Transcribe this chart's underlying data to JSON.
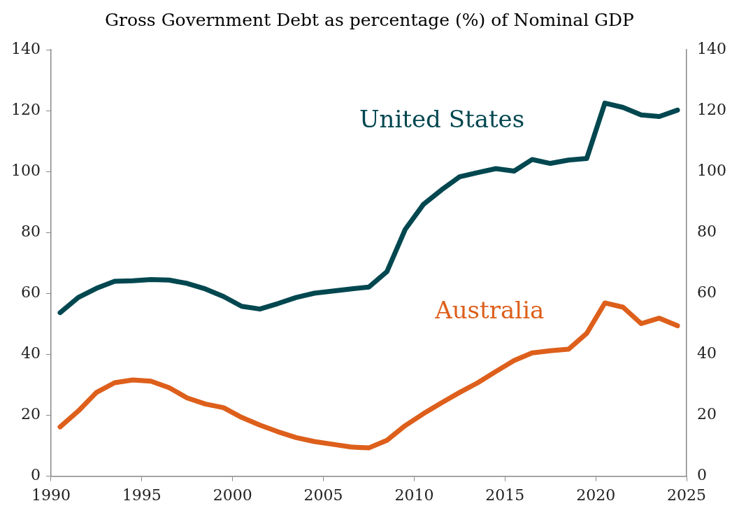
{
  "chart_data": {
    "type": "line",
    "title": "Gross Government Debt as percentage (%) of Nominal GDP",
    "x": [
      1990.5,
      1991.5,
      1992.5,
      1993.5,
      1994.5,
      1995.5,
      1996.5,
      1997.5,
      1998.5,
      1999.5,
      2000.5,
      2001.5,
      2002.5,
      2003.5,
      2004.5,
      2005.5,
      2006.5,
      2007.5,
      2008.5,
      2009.5,
      2010.5,
      2011.5,
      2012.5,
      2013.5,
      2014.5,
      2015.5,
      2016.5,
      2017.5,
      2018.5,
      2019.5,
      2020.5,
      2021.5,
      2022.5,
      2023.5,
      2024.5
    ],
    "series": [
      {
        "name": "United States",
        "color": "#004750",
        "values": [
          53.7,
          58.7,
          61.7,
          64,
          64.2,
          64.6,
          64.4,
          63.3,
          61.5,
          59,
          55.8,
          54.9,
          56.7,
          58.7,
          60.1,
          60.8,
          61.5,
          62.1,
          67.2,
          81,
          89.2,
          94,
          98.3,
          99.7,
          101,
          100.2,
          104,
          102.7,
          103.8,
          104.3,
          122.5,
          121.1,
          118.6,
          118.1,
          120.2
        ]
      },
      {
        "name": "Australia",
        "color": "#dd5f1b",
        "values": [
          16.2,
          21.4,
          27.5,
          30.7,
          31.6,
          31.2,
          29.1,
          25.7,
          23.7,
          22.5,
          19.3,
          16.8,
          14.6,
          12.7,
          11.4,
          10.5,
          9.6,
          9.3,
          11.8,
          16.6,
          20.5,
          24.1,
          27.5,
          30.7,
          34.4,
          38,
          40.5,
          41.2,
          41.7,
          46.9,
          56.9,
          55.5,
          50.1,
          51.9,
          49.4
        ]
      }
    ],
    "xlim": [
      1990,
      2025
    ],
    "xticks": [
      1990,
      1995,
      2000,
      2005,
      2010,
      2015,
      2020,
      2025
    ],
    "ylim": [
      0,
      140
    ],
    "yticks": [
      0,
      20,
      40,
      60,
      80,
      100,
      120,
      140
    ],
    "y2lim": [
      0,
      140
    ],
    "y2ticks": [
      0,
      20,
      40,
      60,
      80,
      100,
      120,
      140
    ],
    "grid": false,
    "legend": false,
    "marker": "none",
    "line_style": "solid"
  }
}
